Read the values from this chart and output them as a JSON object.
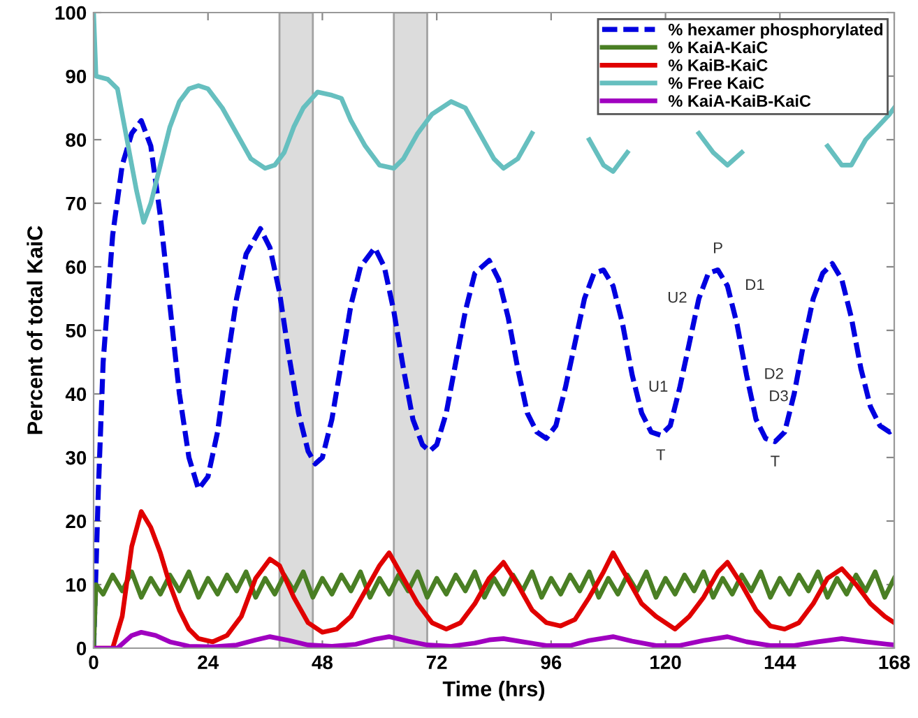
{
  "chart_data": {
    "type": "line",
    "xlabel": "Time (hrs)",
    "ylabel": "Percent of total KaiC",
    "xlim": [
      0,
      168
    ],
    "ylim": [
      0,
      100
    ],
    "xticks": [
      0,
      24,
      48,
      72,
      96,
      120,
      144,
      168
    ],
    "yticks": [
      0,
      10,
      20,
      30,
      40,
      50,
      60,
      70,
      80,
      90,
      100
    ],
    "grid": false,
    "legend": "top right",
    "marker": "none",
    "series": [
      {
        "name": "% hexamer phosphorylated",
        "color": "#0000e0",
        "line_style": "dashed",
        "x": [
          0,
          1,
          2,
          4,
          6,
          8,
          10,
          12,
          14,
          16,
          18,
          20,
          22,
          24,
          26,
          28,
          30,
          32,
          35,
          37,
          39,
          41,
          43,
          45,
          46.5,
          48,
          50,
          52,
          54,
          56,
          59,
          61,
          63,
          65,
          67,
          69,
          70.5,
          72,
          74,
          76,
          78,
          80,
          83,
          85,
          87,
          89,
          91,
          93,
          95,
          97,
          99,
          101,
          103,
          105,
          107,
          109,
          111,
          113,
          115,
          117,
          119,
          121,
          123,
          125,
          127,
          129,
          131,
          133,
          135,
          137,
          139,
          141,
          143,
          145,
          147,
          149,
          151,
          153,
          155,
          157,
          159,
          161,
          163,
          165,
          167,
          168
        ],
        "values": [
          0,
          25,
          45,
          65,
          76,
          81,
          83,
          79,
          68,
          54,
          40,
          30,
          25,
          27,
          34,
          45,
          55,
          62,
          66,
          63,
          56,
          46,
          37,
          31,
          29,
          30,
          36,
          45,
          54,
          60,
          63,
          60,
          53,
          44,
          36,
          32,
          31,
          32,
          37,
          45,
          53,
          59,
          61,
          58,
          52,
          44,
          37,
          34,
          33,
          35,
          41,
          48,
          55,
          59,
          59.5,
          57,
          51,
          43,
          37,
          34,
          33.5,
          35,
          41,
          48,
          55,
          59,
          59.5,
          57,
          51,
          43,
          36,
          33,
          32.5,
          34,
          40,
          48,
          55,
          59,
          60.5,
          58,
          52,
          44,
          38,
          35,
          34,
          34.5
        ]
      },
      {
        "name": "% KaiA-KaiC",
        "color": "#4a7f24",
        "line_style": "solid",
        "x": [
          0,
          0.5,
          2,
          4,
          6,
          8,
          10,
          12,
          14,
          16,
          18,
          20,
          22,
          24,
          26,
          28,
          30,
          32,
          34,
          36,
          38,
          40,
          42,
          44,
          46,
          48,
          50,
          52,
          54,
          56,
          58,
          60,
          62,
          64,
          66,
          68,
          70,
          72,
          74,
          76,
          78,
          80,
          82,
          84,
          86,
          88,
          90,
          92,
          94,
          96,
          98,
          100,
          102,
          104,
          106,
          108,
          110,
          112,
          114,
          116,
          118,
          120,
          122,
          124,
          126,
          128,
          130,
          132,
          134,
          136,
          138,
          140,
          142,
          144,
          146,
          148,
          150,
          152,
          154,
          156,
          158,
          160,
          162,
          164,
          166,
          168
        ],
        "values": [
          0,
          10,
          8.5,
          11.5,
          9,
          12,
          8,
          11,
          8.5,
          11.5,
          9,
          12,
          8,
          11,
          8.5,
          11.5,
          9,
          12,
          8,
          11,
          8.5,
          11.5,
          9,
          12,
          8,
          11,
          8.5,
          11.5,
          9,
          12,
          8,
          11,
          8.5,
          11.5,
          9,
          12,
          8,
          11,
          8.5,
          11.5,
          9,
          12,
          8,
          11,
          8.5,
          11.5,
          9,
          12,
          8,
          11,
          8.5,
          11.5,
          9,
          12,
          8,
          11,
          8.5,
          11.5,
          9,
          12,
          8,
          11,
          8.5,
          11.5,
          9,
          12,
          8,
          11,
          8.5,
          11.5,
          9,
          12,
          8,
          11,
          8.5,
          11.5,
          9,
          12,
          8,
          11,
          8.5,
          11.5,
          9,
          12,
          8,
          11
        ]
      },
      {
        "name": "% KaiB-KaiC",
        "color": "#e00000",
        "line_style": "solid",
        "x": [
          0,
          4,
          6,
          8,
          10,
          12,
          14,
          16,
          18,
          20,
          22,
          25,
          28,
          31,
          34,
          37,
          39,
          42,
          45,
          48,
          51,
          54,
          57,
          60,
          62,
          65,
          68,
          71,
          74,
          77,
          80,
          83,
          86,
          89,
          92,
          95,
          98,
          101,
          104,
          107,
          109,
          112,
          115,
          118,
          122,
          125,
          128,
          131,
          133,
          136,
          139,
          142,
          145,
          148,
          151,
          154,
          157,
          160,
          163,
          166,
          168
        ],
        "values": [
          0,
          0,
          5,
          16,
          21.5,
          19,
          15,
          10,
          6,
          3,
          1.5,
          1,
          2,
          5,
          11,
          14,
          13,
          8,
          4,
          2.5,
          3,
          5,
          9,
          13,
          15,
          11,
          7,
          4,
          3,
          4,
          7,
          11,
          13.5,
          10,
          6,
          4,
          3.5,
          4.5,
          8,
          12,
          15,
          11,
          7,
          5,
          3,
          5,
          8,
          12,
          13.5,
          10,
          6,
          3.5,
          3,
          4,
          7,
          11,
          12.5,
          10,
          7,
          5,
          4
        ]
      },
      {
        "name": "% Free KaiC",
        "color": "#66bfbf",
        "line_style": "solid",
        "x": [
          0,
          0.5,
          3,
          5,
          7,
          9,
          10.5,
          12,
          14,
          16,
          18,
          20,
          22,
          24,
          27,
          30,
          33,
          36,
          38,
          40,
          42,
          44,
          47,
          50,
          52,
          54,
          57,
          60,
          63,
          65,
          68,
          71,
          75,
          78,
          81,
          84,
          86,
          89,
          92,
          95,
          98,
          101,
          104,
          107,
          109,
          112,
          115,
          118,
          121,
          124,
          127,
          130,
          133,
          136,
          139,
          142,
          145,
          148,
          151,
          154,
          157,
          159,
          162,
          167,
          168
        ],
        "values": [
          100,
          90,
          89.5,
          88,
          80,
          72,
          67,
          70,
          76,
          82,
          86,
          88,
          88.5,
          88,
          85,
          81,
          77,
          75.5,
          76,
          78,
          82,
          85,
          87.5,
          87,
          86.5,
          83,
          79,
          76,
          75.5,
          77,
          81,
          84,
          86,
          85,
          81,
          77,
          75.5,
          77,
          81,
          null,
          null,
          null,
          80,
          76,
          75,
          78,
          null,
          null,
          null,
          null,
          81,
          78,
          76,
          78,
          null,
          null,
          null,
          null,
          null,
          79,
          76,
          76,
          80,
          84,
          85
        ]
      },
      {
        "name": "% KaiA-KaiB-KaiC",
        "color": "#a000c0",
        "line_style": "solid",
        "x": [
          0,
          5,
          8,
          10,
          13,
          16,
          20,
          25,
          30,
          34,
          37,
          41,
          45,
          50,
          55,
          59,
          62,
          66,
          70,
          75,
          80,
          83,
          86,
          90,
          95,
          100,
          104,
          109,
          113,
          118,
          123,
          128,
          133,
          137,
          142,
          147,
          152,
          157,
          162,
          168
        ],
        "values": [
          0,
          0,
          2,
          2.5,
          2,
          1,
          0.3,
          0.2,
          0.5,
          1.3,
          1.8,
          1.2,
          0.5,
          0.3,
          0.6,
          1.4,
          1.8,
          1.1,
          0.5,
          0.3,
          0.8,
          1.3,
          1.5,
          1,
          0.4,
          0.4,
          1.2,
          1.8,
          1.1,
          0.4,
          0.4,
          1.2,
          1.8,
          1,
          0.4,
          0.4,
          1,
          1.5,
          1,
          0.5
        ]
      }
    ],
    "bands": [
      {
        "axis": "x",
        "from": 39,
        "to": 46,
        "color": "#d9d9d9"
      },
      {
        "axis": "x",
        "from": 63,
        "to": 70,
        "color": "#d9d9d9"
      }
    ],
    "annotations": [
      {
        "text": "P",
        "x": 131,
        "y": 59.5
      },
      {
        "text": "U2",
        "x": 127,
        "y": 55
      },
      {
        "text": "D1",
        "x": 133,
        "y": 57
      },
      {
        "text": "D2",
        "x": 137,
        "y": 43
      },
      {
        "text": "U1",
        "x": 123,
        "y": 41
      },
      {
        "text": "D3",
        "x": 138,
        "y": 39.5
      },
      {
        "text": "T",
        "x": 119,
        "y": 33.5
      },
      {
        "text": "T",
        "x": 143,
        "y": 32.5
      }
    ]
  }
}
